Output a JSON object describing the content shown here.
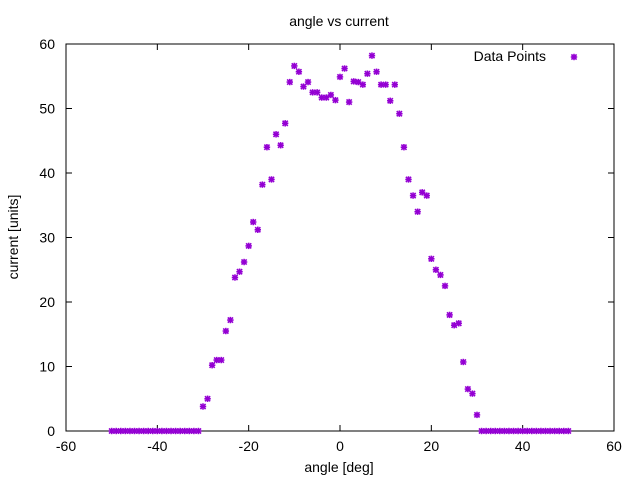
{
  "chart_data": {
    "type": "scatter",
    "title": "angle vs current",
    "xlabel": "angle [deg]",
    "ylabel": "current [units]",
    "xlim": [
      -60,
      60
    ],
    "ylim": [
      0,
      60
    ],
    "xticks": [
      -60,
      -40,
      -20,
      0,
      20,
      40,
      60
    ],
    "yticks": [
      0,
      10,
      20,
      30,
      40,
      50,
      60
    ],
    "grid": false,
    "legend_position": "top-right",
    "series": [
      {
        "name": "Data Points",
        "color": "#9400d3",
        "marker": "star",
        "x": [
          -50,
          -49,
          -48,
          -47,
          -46,
          -45,
          -44,
          -43,
          -42,
          -41,
          -40,
          -39,
          -38,
          -37,
          -36,
          -35,
          -34,
          -33,
          -32,
          -31,
          -30,
          -29,
          -28,
          -27,
          -26,
          -25,
          -24,
          -23,
          -22,
          -21,
          -20,
          -19,
          -18,
          -17,
          -16,
          -15,
          -14,
          -13,
          -12,
          -11,
          -10,
          -9,
          -8,
          -7,
          -6,
          -5,
          -4,
          -3,
          -2,
          -1,
          0,
          1,
          2,
          3,
          4,
          5,
          6,
          7,
          8,
          9,
          10,
          11,
          12,
          13,
          14,
          15,
          16,
          17,
          18,
          19,
          20,
          21,
          22,
          23,
          24,
          25,
          26,
          27,
          28,
          29,
          30,
          31,
          32,
          33,
          34,
          35,
          36,
          37,
          38,
          39,
          40,
          41,
          42,
          43,
          44,
          45,
          46,
          47,
          48,
          49,
          50
        ],
        "y": [
          0,
          0,
          0,
          0,
          0,
          0,
          0,
          0,
          0,
          0,
          0,
          0,
          0,
          0,
          0,
          0,
          0,
          0,
          0,
          0,
          3.8,
          5,
          10.2,
          11,
          11,
          15.5,
          17.2,
          23.8,
          24.7,
          26.2,
          28.7,
          32.4,
          31.2,
          38.2,
          44,
          39,
          46,
          44.3,
          47.7,
          54.1,
          56.6,
          55.7,
          53.4,
          54.1,
          52.5,
          52.5,
          51.7,
          51.7,
          52.1,
          51.3,
          54.9,
          56.2,
          51,
          54.2,
          54.1,
          53.7,
          55.4,
          58.2,
          55.7,
          53.7,
          53.7,
          51.2,
          53.7,
          49.2,
          44,
          39,
          36.5,
          34,
          37,
          36.5,
          26.7,
          25,
          24.2,
          22.5,
          18,
          16.4,
          16.7,
          10.7,
          6.5,
          5.8,
          2.5,
          0,
          0,
          0,
          0,
          0,
          0,
          0,
          0,
          0,
          0,
          0,
          0,
          0,
          0,
          0,
          0,
          0,
          0,
          0,
          0
        ]
      }
    ]
  }
}
